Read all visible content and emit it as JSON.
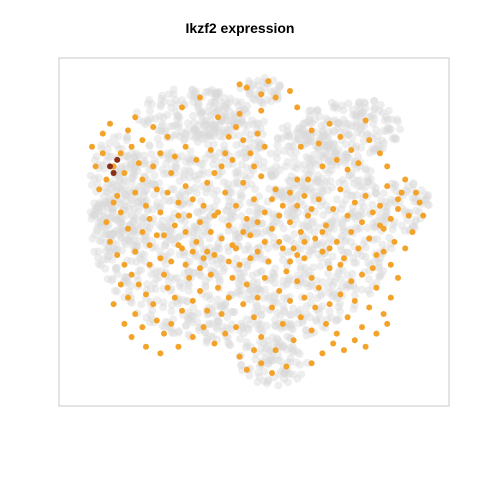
{
  "chart_data": {
    "type": "scatter",
    "title": "Ikzf2 expression",
    "xlabel": "",
    "ylabel": "",
    "axes_visible": false,
    "grid": false,
    "legend": "none",
    "colors": {
      "background_cells": "#d9d9d9",
      "expressing_cells": "#f4a32a",
      "high_expressing_cells": "#8b2e16",
      "frame": "#c8c8c8"
    },
    "series": [
      {
        "name": "",
        "color": "#f4a32a",
        "points": [
          [
            0.08,
            0.8
          ],
          [
            0.11,
            0.7
          ],
          [
            0.13,
            0.74
          ],
          [
            0.1,
            0.83
          ],
          [
            0.15,
            0.81
          ],
          [
            0.09,
            0.66
          ],
          [
            0.12,
            0.61
          ],
          [
            0.14,
            0.68
          ],
          [
            0.16,
            0.76
          ],
          [
            0.18,
            0.71
          ],
          [
            0.17,
            0.62
          ],
          [
            0.19,
            0.66
          ],
          [
            0.2,
            0.58
          ],
          [
            0.22,
            0.7
          ],
          [
            0.23,
            0.63
          ],
          [
            0.21,
            0.54
          ],
          [
            0.24,
            0.56
          ],
          [
            0.26,
            0.62
          ],
          [
            0.27,
            0.68
          ],
          [
            0.25,
            0.49
          ],
          [
            0.28,
            0.52
          ],
          [
            0.29,
            0.59
          ],
          [
            0.31,
            0.64
          ],
          [
            0.3,
            0.45
          ],
          [
            0.32,
            0.55
          ],
          [
            0.33,
            0.6
          ],
          [
            0.35,
            0.53
          ],
          [
            0.34,
            0.47
          ],
          [
            0.36,
            0.58
          ],
          [
            0.37,
            0.65
          ],
          [
            0.38,
            0.5
          ],
          [
            0.39,
            0.43
          ],
          [
            0.4,
            0.56
          ],
          [
            0.42,
            0.62
          ],
          [
            0.41,
            0.7
          ],
          [
            0.43,
            0.52
          ],
          [
            0.44,
            0.46
          ],
          [
            0.45,
            0.58
          ],
          [
            0.46,
            0.4
          ],
          [
            0.47,
            0.65
          ],
          [
            0.48,
            0.54
          ],
          [
            0.49,
            0.49
          ],
          [
            0.5,
            0.6
          ],
          [
            0.51,
            0.44
          ],
          [
            0.52,
            0.67
          ],
          [
            0.53,
            0.56
          ],
          [
            0.54,
            0.41
          ],
          [
            0.55,
            0.51
          ],
          [
            0.56,
            0.63
          ],
          [
            0.57,
            0.47
          ],
          [
            0.58,
            0.58
          ],
          [
            0.59,
            0.38
          ],
          [
            0.6,
            0.53
          ],
          [
            0.61,
            0.45
          ],
          [
            0.62,
            0.66
          ],
          [
            0.63,
            0.5
          ],
          [
            0.64,
            0.42
          ],
          [
            0.65,
            0.55
          ],
          [
            0.66,
            0.36
          ],
          [
            0.67,
            0.48
          ],
          [
            0.68,
            0.6
          ],
          [
            0.69,
            0.44
          ],
          [
            0.7,
            0.52
          ],
          [
            0.71,
            0.39
          ],
          [
            0.72,
            0.57
          ],
          [
            0.73,
            0.47
          ],
          [
            0.74,
            0.63
          ],
          [
            0.75,
            0.42
          ],
          [
            0.76,
            0.55
          ],
          [
            0.77,
            0.5
          ],
          [
            0.78,
            0.59
          ],
          [
            0.79,
            0.45
          ],
          [
            0.8,
            0.53
          ],
          [
            0.81,
            0.61
          ],
          [
            0.82,
            0.48
          ],
          [
            0.83,
            0.56
          ],
          [
            0.84,
            0.43
          ],
          [
            0.85,
            0.58
          ],
          [
            0.86,
            0.51
          ],
          [
            0.87,
            0.64
          ],
          [
            0.88,
            0.54
          ],
          [
            0.89,
            0.47
          ],
          [
            0.9,
            0.57
          ],
          [
            0.91,
            0.62
          ],
          [
            0.93,
            0.55
          ],
          [
            0.95,
            0.62
          ],
          [
            0.97,
            0.55
          ],
          [
            0.94,
            0.5
          ],
          [
            0.92,
            0.45
          ],
          [
            0.96,
            0.59
          ],
          [
            0.1,
            0.47
          ],
          [
            0.12,
            0.43
          ],
          [
            0.14,
            0.4
          ],
          [
            0.16,
            0.37
          ],
          [
            0.18,
            0.34
          ],
          [
            0.2,
            0.31
          ],
          [
            0.22,
            0.28
          ],
          [
            0.17,
            0.25
          ],
          [
            0.19,
            0.21
          ],
          [
            0.23,
            0.23
          ],
          [
            0.25,
            0.19
          ],
          [
            0.27,
            0.22
          ],
          [
            0.26,
            0.33
          ],
          [
            0.28,
            0.3
          ],
          [
            0.3,
            0.26
          ],
          [
            0.32,
            0.36
          ],
          [
            0.33,
            0.29
          ],
          [
            0.35,
            0.32
          ],
          [
            0.37,
            0.26
          ],
          [
            0.38,
            0.37
          ],
          [
            0.4,
            0.33
          ],
          [
            0.41,
            0.25
          ],
          [
            0.43,
            0.3
          ],
          [
            0.44,
            0.36
          ],
          [
            0.45,
            0.21
          ],
          [
            0.47,
            0.28
          ],
          [
            0.48,
            0.34
          ],
          [
            0.5,
            0.24
          ],
          [
            0.51,
            0.3
          ],
          [
            0.52,
            0.18
          ],
          [
            0.53,
            0.36
          ],
          [
            0.55,
            0.27
          ],
          [
            0.56,
            0.14
          ],
          [
            0.57,
            0.32
          ],
          [
            0.58,
            0.22
          ],
          [
            0.59,
            0.09
          ],
          [
            0.6,
            0.29
          ],
          [
            0.61,
            0.17
          ],
          [
            0.62,
            0.35
          ],
          [
            0.63,
            0.24
          ],
          [
            0.64,
            0.3
          ],
          [
            0.66,
            0.2
          ],
          [
            0.67,
            0.27
          ],
          [
            0.68,
            0.33
          ],
          [
            0.7,
            0.22
          ],
          [
            0.71,
            0.28
          ],
          [
            0.73,
            0.19
          ],
          [
            0.74,
            0.31
          ],
          [
            0.76,
            0.24
          ],
          [
            0.78,
            0.29
          ],
          [
            0.8,
            0.21
          ],
          [
            0.82,
            0.27
          ],
          [
            0.84,
            0.33
          ],
          [
            0.86,
            0.25
          ],
          [
            0.88,
            0.3
          ],
          [
            0.55,
            0.07
          ],
          [
            0.52,
            0.1
          ],
          [
            0.5,
            0.14
          ],
          [
            0.48,
            0.08
          ],
          [
            0.46,
            0.12
          ],
          [
            0.45,
            0.82
          ],
          [
            0.47,
            0.78
          ],
          [
            0.49,
            0.74
          ],
          [
            0.51,
            0.8
          ],
          [
            0.53,
            0.76
          ],
          [
            0.44,
            0.72
          ],
          [
            0.46,
            0.86
          ],
          [
            0.52,
            0.87
          ],
          [
            0.43,
            0.79
          ],
          [
            0.5,
            0.7
          ],
          [
            0.48,
            0.94
          ],
          [
            0.52,
            0.92
          ],
          [
            0.54,
            0.96
          ],
          [
            0.56,
            0.91
          ],
          [
            0.46,
            0.95
          ],
          [
            0.6,
            0.93
          ],
          [
            0.62,
            0.88
          ],
          [
            0.3,
            0.88
          ],
          [
            0.35,
            0.91
          ],
          [
            0.4,
            0.85
          ],
          [
            0.63,
            0.76
          ],
          [
            0.66,
            0.81
          ],
          [
            0.68,
            0.77
          ],
          [
            0.71,
            0.83
          ],
          [
            0.74,
            0.79
          ],
          [
            0.77,
            0.75
          ],
          [
            0.79,
            0.71
          ],
          [
            0.82,
            0.78
          ],
          [
            0.85,
            0.74
          ],
          [
            0.87,
            0.7
          ],
          [
            0.81,
            0.84
          ],
          [
            0.76,
            0.69
          ],
          [
            0.73,
            0.72
          ],
          [
            0.69,
            0.7
          ],
          [
            0.65,
            0.66
          ],
          [
            0.38,
            0.75
          ],
          [
            0.34,
            0.72
          ],
          [
            0.31,
            0.76
          ],
          [
            0.28,
            0.73
          ],
          [
            0.26,
            0.79
          ],
          [
            0.22,
            0.82
          ],
          [
            0.19,
            0.78
          ],
          [
            0.17,
            0.85
          ],
          [
            0.24,
            0.74
          ],
          [
            0.39,
            0.68
          ],
          [
            0.42,
            0.74
          ],
          [
            0.36,
            0.42
          ],
          [
            0.31,
            0.4
          ],
          [
            0.29,
            0.46
          ],
          [
            0.24,
            0.42
          ],
          [
            0.21,
            0.46
          ],
          [
            0.15,
            0.51
          ],
          [
            0.13,
            0.56
          ],
          [
            0.11,
            0.59
          ],
          [
            0.09,
            0.53
          ],
          [
            0.07,
            0.63
          ],
          [
            0.06,
            0.7
          ],
          [
            0.05,
            0.76
          ],
          [
            0.08,
            0.74
          ],
          [
            0.92,
            0.66
          ],
          [
            0.9,
            0.6
          ],
          [
            0.86,
            0.44
          ],
          [
            0.83,
            0.39
          ],
          [
            0.8,
            0.37
          ],
          [
            0.77,
            0.35
          ],
          [
            0.74,
            0.4
          ],
          [
            0.71,
            0.45
          ],
          [
            0.69,
            0.5
          ],
          [
            0.66,
            0.57
          ],
          [
            0.64,
            0.61
          ],
          [
            0.62,
            0.58
          ],
          [
            0.6,
            0.62
          ],
          [
            0.57,
            0.55
          ],
          [
            0.55,
            0.6
          ],
          [
            0.53,
            0.47
          ],
          [
            0.51,
            0.53
          ],
          [
            0.49,
            0.42
          ],
          [
            0.47,
            0.5
          ],
          [
            0.45,
            0.45
          ],
          [
            0.43,
            0.41
          ],
          [
            0.41,
            0.48
          ],
          [
            0.39,
            0.55
          ],
          [
            0.37,
            0.44
          ],
          [
            0.35,
            0.39
          ],
          [
            0.33,
            0.44
          ],
          [
            0.31,
            0.5
          ],
          [
            0.29,
            0.55
          ],
          [
            0.27,
            0.41
          ],
          [
            0.25,
            0.37
          ],
          [
            0.23,
            0.49
          ],
          [
            0.21,
            0.4
          ],
          [
            0.19,
            0.5
          ],
          [
            0.17,
            0.44
          ],
          [
            0.15,
            0.3
          ],
          [
            0.13,
            0.34
          ],
          [
            0.11,
            0.28
          ],
          [
            0.14,
            0.22
          ],
          [
            0.16,
            0.18
          ],
          [
            0.2,
            0.15
          ],
          [
            0.24,
            0.13
          ],
          [
            0.29,
            0.15
          ],
          [
            0.33,
            0.18
          ],
          [
            0.36,
            0.21
          ],
          [
            0.39,
            0.16
          ],
          [
            0.42,
            0.19
          ],
          [
            0.66,
            0.1
          ],
          [
            0.69,
            0.13
          ],
          [
            0.72,
            0.16
          ],
          [
            0.75,
            0.14
          ],
          [
            0.78,
            0.17
          ],
          [
            0.81,
            0.15
          ],
          [
            0.84,
            0.19
          ],
          [
            0.87,
            0.22
          ],
          [
            0.58,
            0.45
          ],
          [
            0.6,
            0.41
          ],
          [
            0.62,
            0.43
          ],
          [
            0.64,
            0.47
          ],
          [
            0.85,
            0.52
          ],
          [
            0.88,
            0.4
          ],
          [
            0.9,
            0.36
          ]
        ]
      }
    ],
    "highlight_points": [
      [
        0.1,
        0.7
      ],
      [
        0.11,
        0.68
      ],
      [
        0.12,
        0.72
      ]
    ]
  }
}
